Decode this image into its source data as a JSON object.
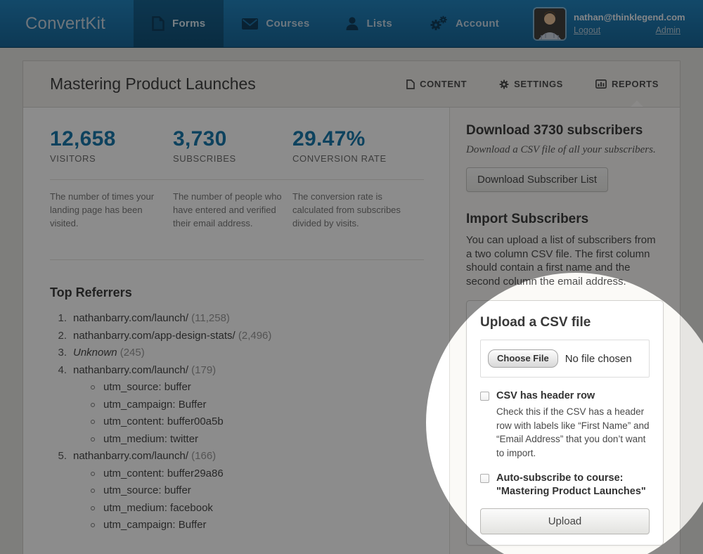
{
  "colors": {
    "nav_blue": "#2285c0",
    "accent_blue": "#1878ab",
    "dim_overlay": "rgba(0,0,0,0.45)"
  },
  "nav": {
    "brand": "ConvertKit",
    "items": [
      {
        "label": "Forms",
        "icon": "document-icon",
        "active": true
      },
      {
        "label": "Courses",
        "icon": "envelope-icon",
        "active": false
      },
      {
        "label": "Lists",
        "icon": "person-icon",
        "active": false
      },
      {
        "label": "Account",
        "icon": "gears-icon",
        "active": false
      }
    ],
    "user": {
      "email": "nathan@thinklegend.com",
      "logout_label": "Logout",
      "admin_label": "Admin"
    }
  },
  "header": {
    "title": "Mastering Product Launches",
    "tabs": [
      {
        "label": "CONTENT",
        "icon": "page-icon",
        "active": false
      },
      {
        "label": "SETTINGS",
        "icon": "gear-icon",
        "active": false
      },
      {
        "label": "REPORTS",
        "icon": "bar-chart-icon",
        "active": true
      }
    ]
  },
  "stats": [
    {
      "value": "12,658",
      "label": "VISITORS",
      "description": "The number of times your landing page has been visited."
    },
    {
      "value": "3,730",
      "label": "SUBSCRIBES",
      "description": "The number of people who have entered and verified their email address."
    },
    {
      "value": "29.47%",
      "label": "CONVERSION RATE",
      "description": "The conversion rate is calculated from subscribes divided by visits."
    }
  ],
  "referrers": {
    "title": "Top Referrers",
    "items": [
      {
        "text": "nathanbarry.com/launch/",
        "count": "11,258"
      },
      {
        "text": "nathanbarry.com/app-design-stats/",
        "count": "2,496"
      },
      {
        "text": "Unknown",
        "count": "245",
        "italic": true
      },
      {
        "text": "nathanbarry.com/launch/",
        "count": "179",
        "sub": [
          "utm_source: buffer",
          "utm_campaign: Buffer",
          "utm_content: buffer00a5b",
          "utm_medium: twitter"
        ]
      },
      {
        "text": "nathanbarry.com/launch/",
        "count": "166",
        "sub": [
          "utm_content: buffer29a86",
          "utm_source: buffer",
          "utm_medium: facebook",
          "utm_campaign: Buffer"
        ]
      }
    ]
  },
  "sidebar": {
    "download": {
      "heading": "Download 3730 subscribers",
      "subtext": "Download a CSV file of all your subscribers.",
      "button_label": "Download Subscriber List"
    },
    "import": {
      "heading": "Import Subscribers",
      "body": "You can upload a list of subscribers from a two column CSV file. The first column should contain a first name and the second column the email address."
    },
    "upload": {
      "heading": "Upload a CSV file",
      "choose_file_label": "Choose File",
      "no_file_text": "No file chosen",
      "checkbox_header": {
        "label": "CSV has header row",
        "description": "Check this if the CSV has a header row with labels like “First Name” and “Email Address” that you don’t want to import."
      },
      "checkbox_autosub": {
        "label_line1": "Auto-subscribe to course:",
        "label_line2": "\"Mastering Product Launches\""
      },
      "upload_button_label": "Upload"
    }
  }
}
